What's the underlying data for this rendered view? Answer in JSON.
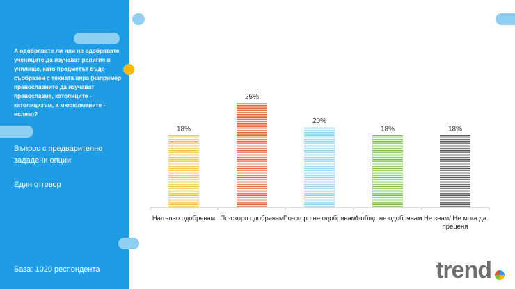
{
  "panel": {
    "question": "А одобрявате ли или не одобрявате учениците да изучават религия в училище, като предметът бъде съобразен с тяхната вяра (например православните да изучават православие, католиците - католицизъм, а мюсюлманите - ислям)?",
    "question_type": "Въпрос с предварително зададени опции",
    "answer_type": "Един отговор",
    "base": "База:  1020 респондента"
  },
  "brand": {
    "logo_text": "trend"
  },
  "colors": {
    "panel": "#1f9ce3",
    "accent_pill": "#8fd0f2",
    "accent_dot": "#f9b800"
  },
  "chart_data": {
    "type": "bar",
    "categories": [
      "Напълно одобрявам",
      "По-скоро одобрявам",
      "По-скоро не одобрявам",
      "Изобщо не одобрявам",
      "Не знам/ Не мога да преценя"
    ],
    "values": [
      18,
      26,
      20,
      18,
      18
    ],
    "value_labels": [
      "18%",
      "26%",
      "20%",
      "18%",
      "18%"
    ],
    "colors": [
      "#f5c142",
      "#e2683f",
      "#8ed3ee",
      "#7dc142",
      "#555555"
    ],
    "ylim": [
      0,
      30
    ],
    "grid": false,
    "legend": "none"
  }
}
